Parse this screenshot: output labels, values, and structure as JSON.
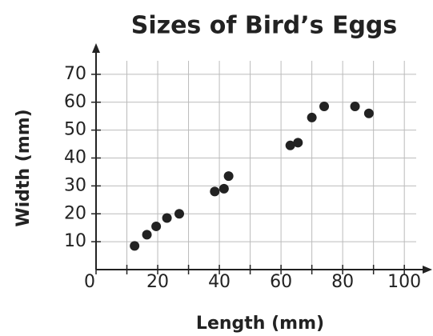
{
  "chart_data": {
    "type": "scatter",
    "title": "Sizes of Bird’s Eggs",
    "x_label": "Length (mm)",
    "y_label": "Width (mm)",
    "x": [
      12.5,
      16.5,
      19.5,
      23,
      27,
      38.5,
      41.5,
      43,
      63,
      65.5,
      70,
      74,
      84,
      88.5
    ],
    "values": [
      8.5,
      12.5,
      15.5,
      18.5,
      20,
      28,
      29,
      33.5,
      44.5,
      45.5,
      54.5,
      58.5,
      58.5,
      56
    ],
    "color": "#222222",
    "xlim": [
      0,
      108
    ],
    "ylim": [
      0,
      80
    ],
    "xticks": [
      0,
      20,
      40,
      60,
      80,
      100
    ],
    "minor_xticks": [
      10,
      30,
      50,
      70,
      90
    ],
    "yticks": [
      10,
      20,
      30,
      40,
      50,
      60,
      70
    ],
    "grid": true
  }
}
